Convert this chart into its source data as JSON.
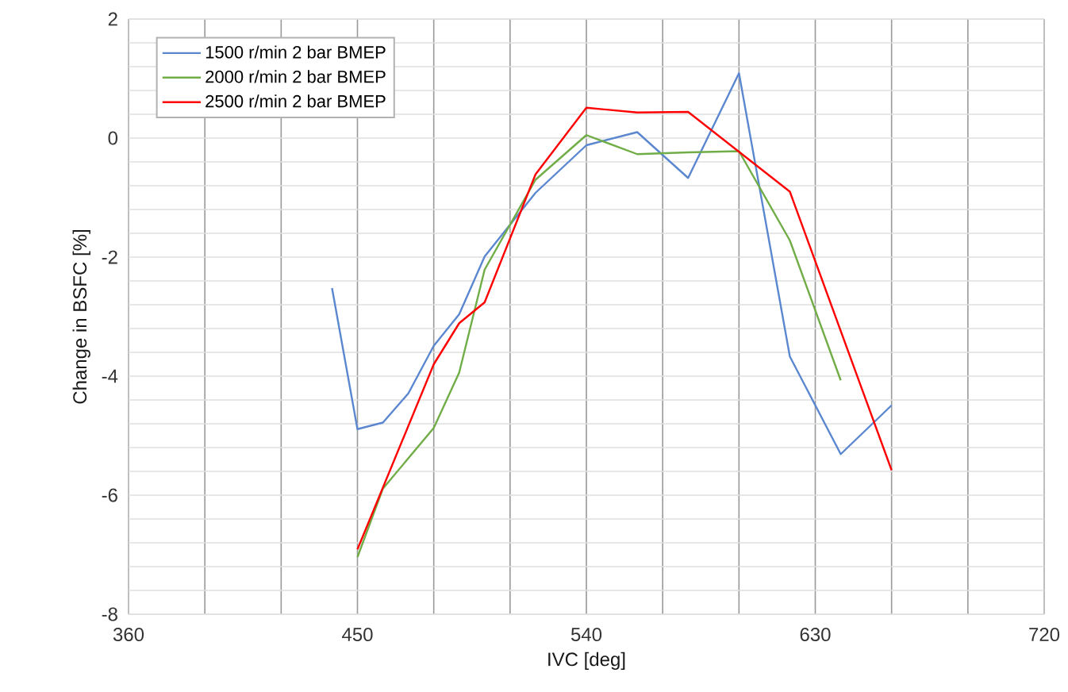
{
  "chart_data": {
    "type": "line",
    "xlabel": "IVC [deg]",
    "ylabel": "Change in BSFC [%]",
    "xlim": [
      360,
      720
    ],
    "xticks": [
      360,
      450,
      540,
      630,
      720
    ],
    "ylim": [
      -8,
      2
    ],
    "yticks": [
      -8,
      -6,
      -4,
      -2,
      0,
      2
    ],
    "grid": true,
    "legend": "top left",
    "line_style": "solid",
    "marker": "none",
    "series": [
      {
        "name": "1500 r/min 2 bar BMEP",
        "color": "#5b87d0",
        "x": [
          440,
          450,
          460,
          470,
          480,
          490,
          500,
          520,
          540,
          560,
          580,
          600,
          620,
          640,
          660
        ],
        "values": [
          -2.52,
          -4.89,
          -4.78,
          -4.29,
          -3.49,
          -2.96,
          -1.99,
          -0.92,
          -0.12,
          0.1,
          -0.67,
          1.09,
          -3.67,
          -5.31,
          -4.49
        ]
      },
      {
        "name": "2000 r/min 2 bar BMEP",
        "color": "#70ad47",
        "x": [
          450,
          460,
          480,
          490,
          500,
          520,
          540,
          560,
          580,
          600,
          620,
          640
        ],
        "values": [
          -7.04,
          -5.89,
          -4.87,
          -3.94,
          -2.21,
          -0.7,
          0.05,
          -0.27,
          -0.24,
          -0.22,
          -1.72,
          -4.07
        ]
      },
      {
        "name": "2500 r/min 2 bar BMEP",
        "color": "#ff0000",
        "x": [
          450,
          480,
          490,
          500,
          520,
          540,
          560,
          580,
          620,
          660
        ],
        "values": [
          -6.91,
          -3.8,
          -3.11,
          -2.76,
          -0.61,
          0.51,
          0.43,
          0.44,
          -0.9,
          -5.58
        ]
      }
    ]
  }
}
